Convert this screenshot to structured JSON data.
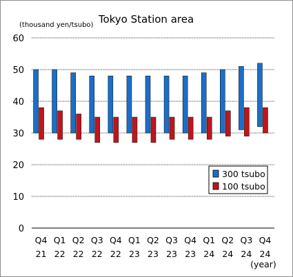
{
  "chart_data": {
    "type": "bar",
    "title": "Tokyo Station area",
    "unit_label": "(thousand yen/tsubo)",
    "x_unit_label": "(year)",
    "ylim": [
      0,
      60
    ],
    "y_ticks": [
      0,
      10,
      20,
      30,
      40,
      50,
      60
    ],
    "grid": true,
    "legend_position": "right",
    "categories": [
      {
        "quarter": "Q4",
        "year": "21"
      },
      {
        "quarter": "Q1",
        "year": "22"
      },
      {
        "quarter": "Q2",
        "year": "22"
      },
      {
        "quarter": "Q3",
        "year": "22"
      },
      {
        "quarter": "Q4",
        "year": "22"
      },
      {
        "quarter": "Q1",
        "year": "23"
      },
      {
        "quarter": "Q2",
        "year": "23"
      },
      {
        "quarter": "Q3",
        "year": "23"
      },
      {
        "quarter": "Q4",
        "year": "23"
      },
      {
        "quarter": "Q1",
        "year": "24"
      },
      {
        "quarter": "Q2",
        "year": "24"
      },
      {
        "quarter": "Q3",
        "year": "24"
      },
      {
        "quarter": "Q4",
        "year": "24"
      }
    ],
    "series": [
      {
        "name": "300 tsubo",
        "color": "#1a6fc9",
        "low": [
          30,
          30,
          30,
          30,
          30,
          30,
          30,
          30,
          30,
          30,
          30,
          31,
          32
        ],
        "high": [
          50,
          50,
          49,
          48,
          48,
          48,
          48,
          48,
          48,
          49,
          50,
          51,
          52
        ]
      },
      {
        "name": "100 tsubo",
        "color": "#c0151c",
        "low": [
          28,
          28,
          28,
          27,
          27,
          27,
          27,
          28,
          28,
          28,
          29,
          29,
          30
        ],
        "high": [
          38,
          37,
          36,
          35,
          35,
          35,
          35,
          35,
          35,
          35,
          37,
          38,
          38
        ]
      }
    ]
  }
}
